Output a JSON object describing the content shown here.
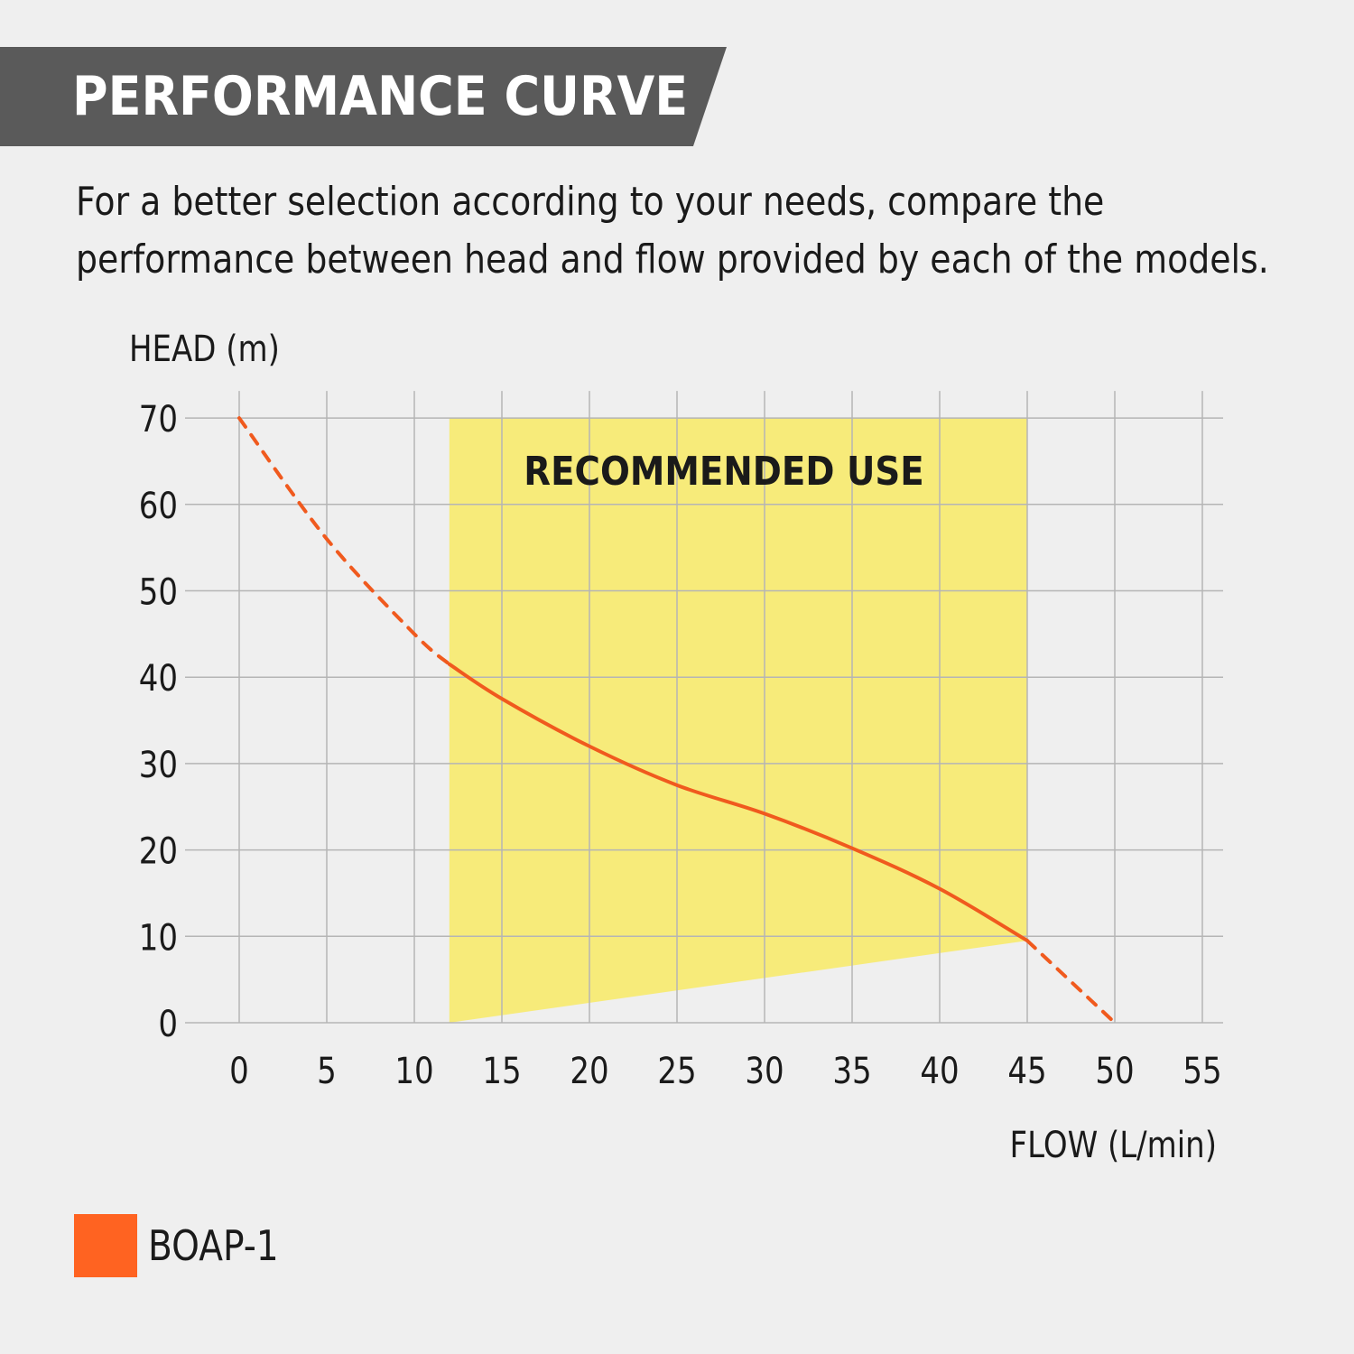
{
  "header": {
    "title": "PERFORMANCE CURVE",
    "description_lines": [
      "For a better selection according to your needs, compare the",
      "performance between head and flow provided by each of the models."
    ]
  },
  "colors": {
    "banner": "#5a5a5a",
    "recommended_zone": "#f7eb7a",
    "curve": "#f05a1e",
    "legend_swatch": "#ff6321",
    "grid": "#b5b5b5"
  },
  "chart_data": {
    "type": "line",
    "xlabel": "FLOW (L/min)",
    "ylabel": "HEAD (m)",
    "xlim": [
      0,
      55
    ],
    "ylim": [
      0,
      70
    ],
    "x_ticks": [
      0,
      5,
      10,
      15,
      20,
      25,
      30,
      35,
      40,
      45,
      50,
      55
    ],
    "y_ticks": [
      0,
      10,
      20,
      30,
      40,
      50,
      60,
      70
    ],
    "grid": true,
    "legend_position": "bottom-left",
    "annotations": [
      {
        "label": "RECOMMENDED USE",
        "region": [
          [
            12,
            0
          ],
          [
            12,
            70
          ],
          [
            45,
            70
          ],
          [
            45,
            9.5
          ]
        ]
      }
    ],
    "series": [
      {
        "name": "BOAP-1",
        "segments": [
          {
            "style": "dashed",
            "points": [
              [
                0,
                70
              ],
              [
                5,
                56
              ],
              [
                10,
                45
              ],
              [
                12,
                41.5
              ]
            ]
          },
          {
            "style": "solid",
            "points": [
              [
                12,
                41.5
              ],
              [
                15,
                37.5
              ],
              [
                20,
                32
              ],
              [
                25,
                27.5
              ],
              [
                30,
                24.2
              ],
              [
                35,
                20.2
              ],
              [
                40,
                15.5
              ],
              [
                45,
                9.5
              ]
            ]
          },
          {
            "style": "dashed",
            "points": [
              [
                45,
                9.5
              ],
              [
                50,
                0
              ]
            ]
          }
        ]
      }
    ]
  }
}
